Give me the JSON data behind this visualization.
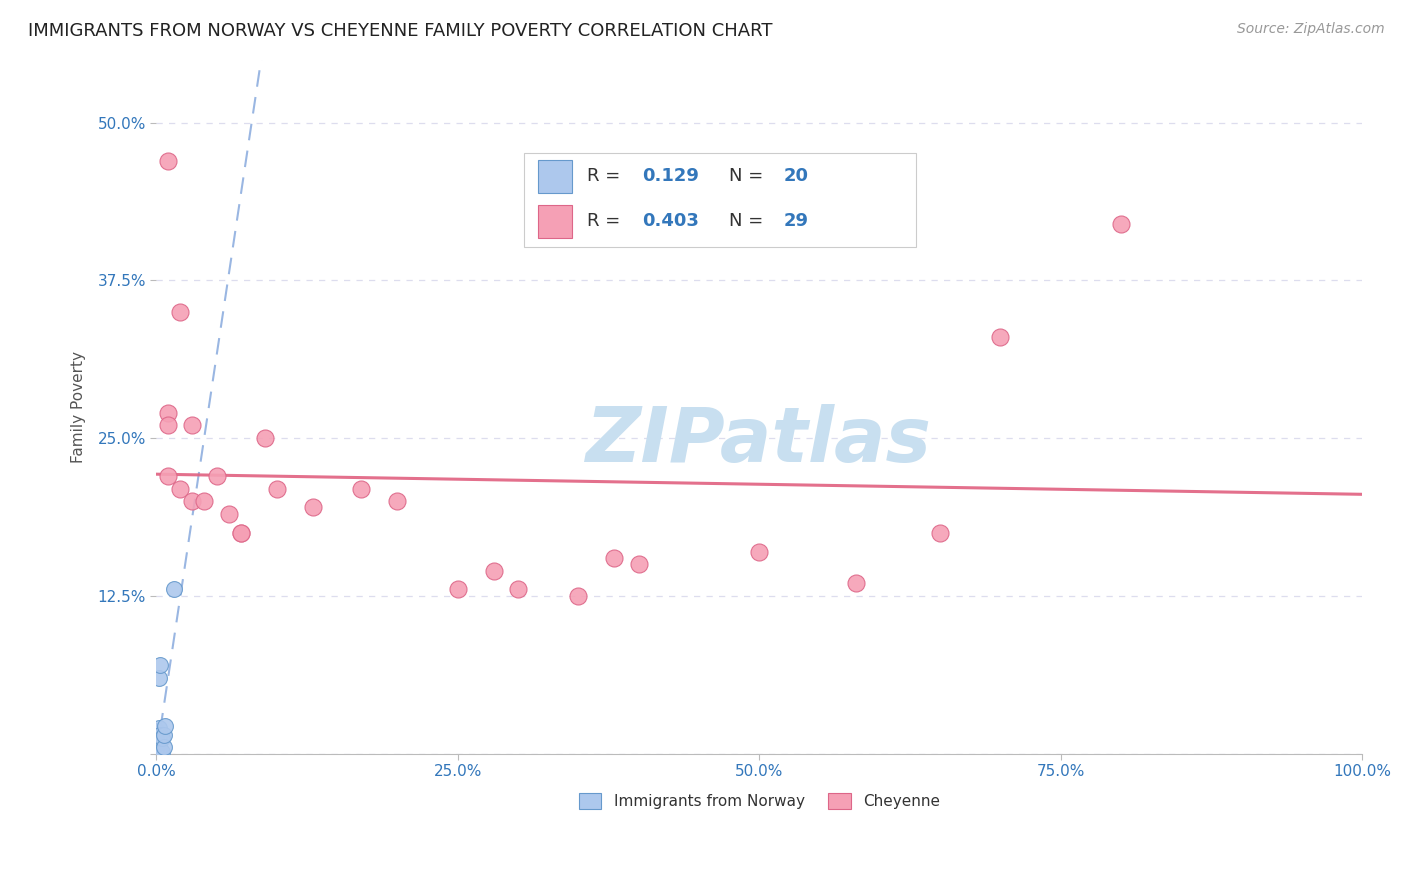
{
  "title": "IMMIGRANTS FROM NORWAY VS CHEYENNE FAMILY POVERTY CORRELATION CHART",
  "source": "Source: ZipAtlas.com",
  "ylabel": "Family Poverty",
  "ytick_values": [
    0,
    0.125,
    0.25,
    0.375,
    0.5
  ],
  "ytick_labels": [
    "",
    "12.5%",
    "25.0%",
    "37.5%",
    "50.0%"
  ],
  "xtick_values": [
    0,
    0.25,
    0.5,
    0.75,
    1.0
  ],
  "xtick_labels": [
    "0.0%",
    "25.0%",
    "50.0%",
    "75.0%",
    "100.0%"
  ],
  "norway_R": "0.129",
  "norway_N": "20",
  "cheyenne_R": "0.403",
  "cheyenne_N": "29",
  "norway_color": "#adc8ed",
  "norway_edge": "#6699cc",
  "cheyenne_color": "#f5a0b5",
  "cheyenne_edge": "#dd6688",
  "norway_line_color": "#88aadd",
  "cheyenne_line_color": "#e06080",
  "norway_x": [
    0.001,
    0.001,
    0.001,
    0.001,
    0.001,
    0.002,
    0.002,
    0.002,
    0.002,
    0.003,
    0.003,
    0.003,
    0.004,
    0.005,
    0.005,
    0.006,
    0.006,
    0.007,
    0.015,
    0.003
  ],
  "norway_y": [
    0.0,
    0.005,
    0.008,
    0.01,
    0.018,
    0.003,
    0.012,
    0.02,
    0.06,
    0.002,
    0.01,
    0.015,
    0.002,
    0.001,
    0.012,
    0.005,
    0.015,
    0.022,
    0.13,
    0.07
  ],
  "cheyenne_x": [
    0.01,
    0.02,
    0.01,
    0.01,
    0.03,
    0.05,
    0.01,
    0.02,
    0.03,
    0.04,
    0.06,
    0.07,
    0.07,
    0.09,
    0.1,
    0.13,
    0.17,
    0.2,
    0.25,
    0.28,
    0.3,
    0.35,
    0.38,
    0.4,
    0.5,
    0.58,
    0.65,
    0.7,
    0.8
  ],
  "cheyenne_y": [
    0.47,
    0.35,
    0.27,
    0.26,
    0.26,
    0.22,
    0.22,
    0.21,
    0.2,
    0.2,
    0.19,
    0.175,
    0.175,
    0.25,
    0.21,
    0.195,
    0.21,
    0.2,
    0.13,
    0.145,
    0.13,
    0.125,
    0.155,
    0.15,
    0.16,
    0.135,
    0.175,
    0.33,
    0.42
  ],
  "watermark": "ZIPatlas",
  "watermark_color": "#c8dff0",
  "background_color": "#ffffff",
  "grid_color": "#ddddee",
  "title_fontsize": 13,
  "axis_label_fontsize": 11,
  "tick_fontsize": 11,
  "legend_fontsize": 13,
  "source_fontsize": 10
}
